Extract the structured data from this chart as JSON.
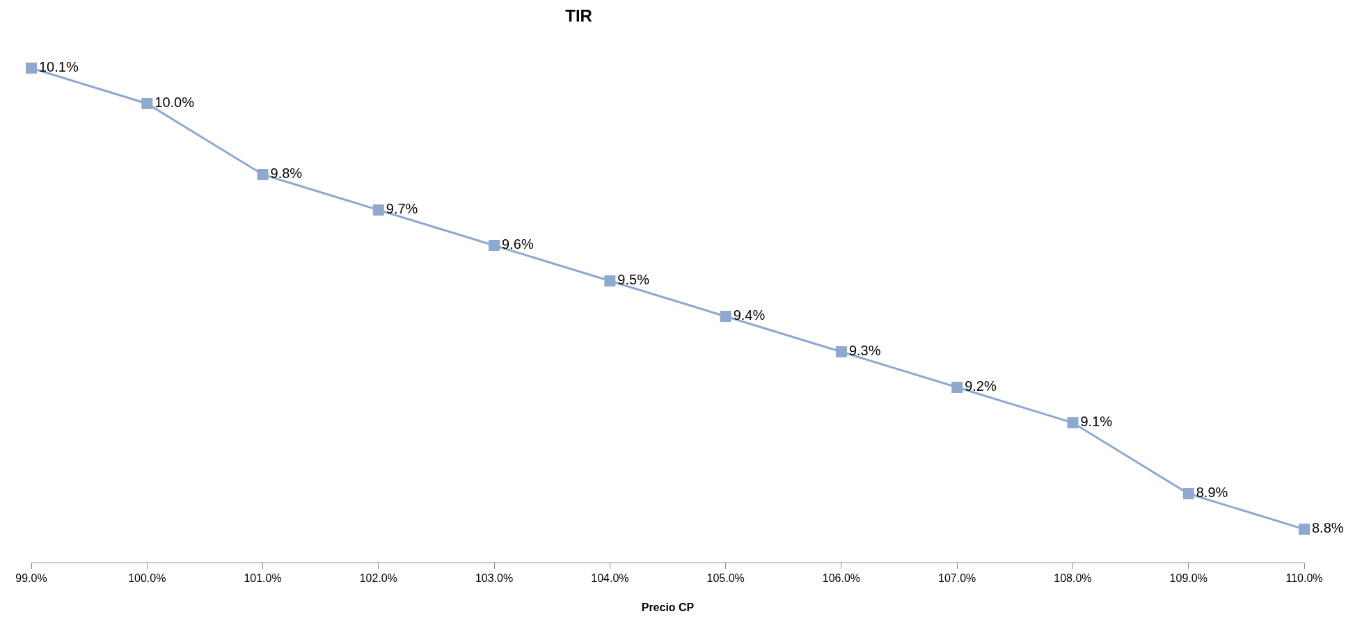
{
  "chart_data": {
    "type": "line",
    "title": "TIR",
    "xlabel": "Precio CP",
    "categories": [
      "99.0%",
      "100.0%",
      "101.0%",
      "102.0%",
      "103.0%",
      "104.0%",
      "105.0%",
      "106.0%",
      "107.0%",
      "108.0%",
      "109.0%",
      "110.0%"
    ],
    "series": [
      {
        "color": "#8fa8d0",
        "values": [
          10.1,
          10.0,
          9.8,
          9.7,
          9.6,
          9.5,
          9.4,
          9.3,
          9.2,
          9.1,
          8.9,
          8.8
        ],
        "value_labels": [
          "10.1%",
          "10.0%",
          "9.8%",
          "9.7%",
          "9.6%",
          "9.5%",
          "9.4%",
          "9.3%",
          "9.2%",
          "9.1%",
          "8.9%",
          "8.8%"
        ]
      }
    ],
    "marker": "square",
    "line_style": "solid"
  }
}
